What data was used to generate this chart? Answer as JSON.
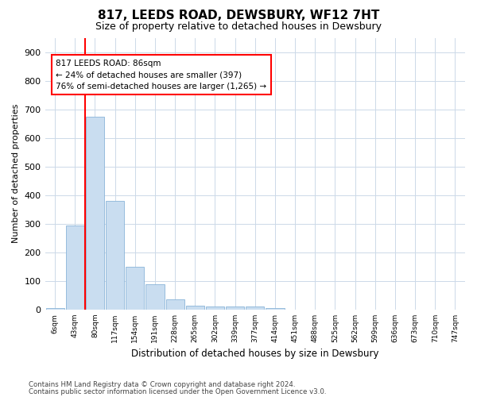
{
  "title": "817, LEEDS ROAD, DEWSBURY, WF12 7HT",
  "subtitle": "Size of property relative to detached houses in Dewsbury",
  "xlabel": "Distribution of detached houses by size in Dewsbury",
  "ylabel": "Number of detached properties",
  "bar_labels": [
    "6sqm",
    "43sqm",
    "80sqm",
    "117sqm",
    "154sqm",
    "191sqm",
    "228sqm",
    "265sqm",
    "302sqm",
    "339sqm",
    "377sqm",
    "414sqm",
    "451sqm",
    "488sqm",
    "525sqm",
    "562sqm",
    "599sqm",
    "636sqm",
    "673sqm",
    "710sqm",
    "747sqm"
  ],
  "bar_values": [
    5,
    295,
    675,
    380,
    150,
    88,
    37,
    15,
    12,
    10,
    10,
    5,
    0,
    0,
    0,
    0,
    0,
    0,
    0,
    0,
    0
  ],
  "bar_color": "#c9ddf0",
  "bar_edge_color": "#8ab4d8",
  "annotation_line1": "817 LEEDS ROAD: 86sqm",
  "annotation_line2": "← 24% of detached houses are smaller (397)",
  "annotation_line3": "76% of semi-detached houses are larger (1,265) →",
  "ylim": [
    0,
    950
  ],
  "yticks": [
    0,
    100,
    200,
    300,
    400,
    500,
    600,
    700,
    800,
    900
  ],
  "bg_color": "#ffffff",
  "grid_color": "#ccd9e8",
  "footer1": "Contains HM Land Registry data © Crown copyright and database right 2024.",
  "footer2": "Contains public sector information licensed under the Open Government Licence v3.0."
}
